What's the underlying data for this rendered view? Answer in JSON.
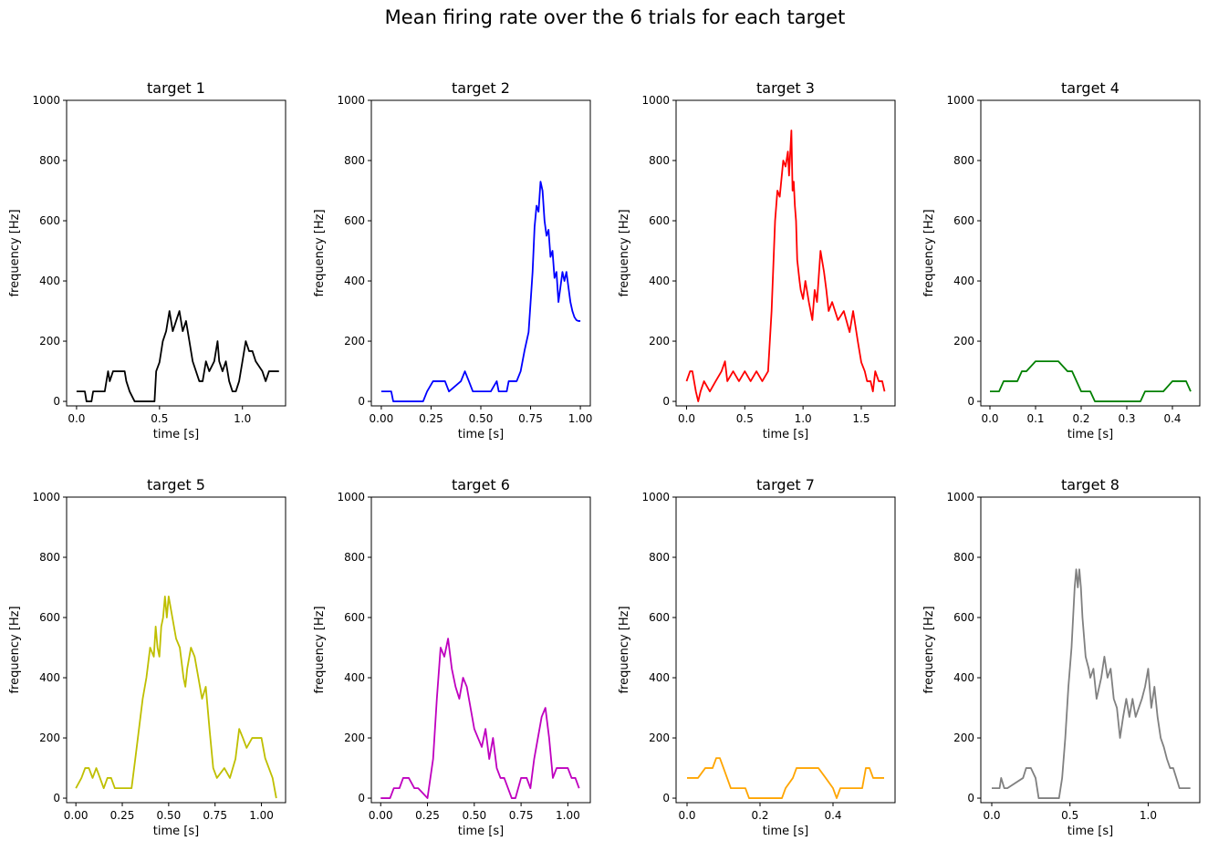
{
  "figure": {
    "suptitle": "Mean firing rate over the 6 trials for each target"
  },
  "chart_data": [
    {
      "type": "line",
      "title": "target 1",
      "xlabel": "time [s]",
      "ylabel": "frequency [Hz]",
      "color": "#000000",
      "xlim": [
        -0.06,
        1.26
      ],
      "ylim": [
        -15,
        1000
      ],
      "xticks": [
        0.0,
        0.5,
        1.0
      ],
      "xticklabels": [
        "0.0",
        "0.5",
        "1.0"
      ],
      "yticks": [
        0,
        200,
        400,
        600,
        800,
        1000
      ],
      "yticklabels": [
        "0",
        "200",
        "400",
        "600",
        "800",
        "1000"
      ],
      "x": [
        0,
        0.05,
        0.06,
        0.09,
        0.1,
        0.17,
        0.19,
        0.2,
        0.22,
        0.29,
        0.3,
        0.32,
        0.35,
        0.47,
        0.48,
        0.5,
        0.52,
        0.54,
        0.56,
        0.58,
        0.6,
        0.62,
        0.64,
        0.66,
        0.68,
        0.7,
        0.72,
        0.74,
        0.76,
        0.78,
        0.8,
        0.83,
        0.85,
        0.86,
        0.88,
        0.9,
        0.92,
        0.94,
        0.96,
        0.98,
        1.0,
        1.02,
        1.04,
        1.06,
        1.08,
        1.12,
        1.14,
        1.16,
        1.18,
        1.2,
        1.22
      ],
      "y": [
        33,
        33,
        0,
        0,
        33,
        33,
        100,
        67,
        100,
        100,
        67,
        33,
        0,
        0,
        100,
        130,
        200,
        233,
        300,
        233,
        267,
        300,
        233,
        267,
        200,
        133,
        100,
        67,
        67,
        133,
        100,
        133,
        200,
        133,
        100,
        133,
        67,
        33,
        33,
        67,
        133,
        200,
        167,
        167,
        133,
        100,
        67,
        100,
        100,
        100,
        100
      ]
    },
    {
      "type": "line",
      "title": "target 2",
      "xlabel": "time [s]",
      "ylabel": "frequency [Hz]",
      "color": "#0000ff",
      "xlim": [
        -0.05,
        1.05
      ],
      "ylim": [
        -15,
        1000
      ],
      "xticks": [
        0.0,
        0.25,
        0.5,
        0.75,
        1.0
      ],
      "xticklabels": [
        "0.00",
        "0.25",
        "0.50",
        "0.75",
        "1.00"
      ],
      "yticks": [
        0,
        200,
        400,
        600,
        800,
        1000
      ],
      "yticklabels": [
        "0",
        "200",
        "400",
        "600",
        "800",
        "1000"
      ],
      "x": [
        0,
        0.05,
        0.06,
        0.21,
        0.23,
        0.26,
        0.32,
        0.34,
        0.4,
        0.42,
        0.44,
        0.46,
        0.5,
        0.55,
        0.58,
        0.59,
        0.6,
        0.63,
        0.64,
        0.68,
        0.7,
        0.72,
        0.74,
        0.75,
        0.76,
        0.77,
        0.78,
        0.79,
        0.8,
        0.81,
        0.82,
        0.83,
        0.84,
        0.85,
        0.86,
        0.87,
        0.88,
        0.89,
        0.9,
        0.91,
        0.92,
        0.93,
        0.94,
        0.95,
        0.96,
        0.97,
        0.98,
        0.99,
        1.0
      ],
      "y": [
        33,
        33,
        0,
        0,
        33,
        67,
        67,
        33,
        67,
        100,
        67,
        33,
        33,
        33,
        67,
        33,
        33,
        33,
        67,
        67,
        100,
        170,
        230,
        330,
        430,
        580,
        650,
        630,
        730,
        700,
        600,
        550,
        570,
        480,
        500,
        410,
        430,
        330,
        380,
        430,
        400,
        430,
        380,
        330,
        300,
        280,
        270,
        267,
        267
      ]
    },
    {
      "type": "line",
      "title": "target 3",
      "xlabel": "time [s]",
      "ylabel": "frequency [Hz]",
      "color": "#ff0000",
      "xlim": [
        -0.09,
        1.79
      ],
      "ylim": [
        -15,
        1000
      ],
      "xticks": [
        0.0,
        0.5,
        1.0,
        1.5
      ],
      "xticklabels": [
        "0.0",
        "0.5",
        "1.0",
        "1.5"
      ],
      "yticks": [
        0,
        200,
        400,
        600,
        800,
        1000
      ],
      "yticklabels": [
        "0",
        "200",
        "400",
        "600",
        "800",
        "1000"
      ],
      "x": [
        0,
        0.03,
        0.05,
        0.08,
        0.1,
        0.12,
        0.15,
        0.2,
        0.25,
        0.3,
        0.33,
        0.35,
        0.4,
        0.45,
        0.5,
        0.55,
        0.6,
        0.65,
        0.7,
        0.73,
        0.76,
        0.78,
        0.8,
        0.83,
        0.85,
        0.87,
        0.88,
        0.9,
        0.91,
        0.92,
        0.93,
        0.94,
        0.95,
        0.97,
        0.98,
        1.0,
        1.02,
        1.05,
        1.08,
        1.1,
        1.12,
        1.15,
        1.18,
        1.2,
        1.22,
        1.25,
        1.3,
        1.35,
        1.4,
        1.43,
        1.47,
        1.5,
        1.53,
        1.55,
        1.58,
        1.6,
        1.62,
        1.65,
        1.68,
        1.7
      ],
      "y": [
        67,
        100,
        100,
        33,
        0,
        33,
        67,
        33,
        67,
        100,
        133,
        67,
        100,
        67,
        100,
        67,
        100,
        67,
        100,
        300,
        600,
        700,
        680,
        800,
        780,
        830,
        750,
        900,
        700,
        730,
        650,
        600,
        470,
        400,
        370,
        340,
        400,
        330,
        270,
        370,
        330,
        500,
        430,
        370,
        300,
        330,
        270,
        300,
        230,
        300,
        200,
        130,
        100,
        67,
        67,
        33,
        100,
        67,
        67,
        33
      ]
    },
    {
      "type": "line",
      "title": "target 4",
      "xlabel": "time [s]",
      "ylabel": "frequency [Hz]",
      "color": "#008000",
      "xlim": [
        -0.02,
        0.46
      ],
      "ylim": [
        -15,
        1000
      ],
      "xticks": [
        0.0,
        0.1,
        0.2,
        0.3,
        0.4
      ],
      "xticklabels": [
        "0.0",
        "0.1",
        "0.2",
        "0.3",
        "0.4"
      ],
      "yticks": [
        0,
        200,
        400,
        600,
        800,
        1000
      ],
      "yticklabels": [
        "0",
        "200",
        "400",
        "600",
        "800",
        "1000"
      ],
      "x": [
        0,
        0.02,
        0.03,
        0.05,
        0.06,
        0.07,
        0.08,
        0.1,
        0.15,
        0.17,
        0.18,
        0.2,
        0.22,
        0.23,
        0.3,
        0.33,
        0.34,
        0.37,
        0.38,
        0.4,
        0.43,
        0.44
      ],
      "y": [
        33,
        33,
        67,
        67,
        67,
        100,
        100,
        133,
        133,
        100,
        100,
        33,
        33,
        0,
        0,
        0,
        33,
        33,
        33,
        67,
        67,
        33
      ]
    },
    {
      "type": "line",
      "title": "target 5",
      "xlabel": "time [s]",
      "ylabel": "frequency [Hz]",
      "color": "#bfbf00",
      "xlim": [
        -0.05,
        1.13
      ],
      "ylim": [
        -15,
        1000
      ],
      "xticks": [
        0.0,
        0.25,
        0.5,
        0.75,
        1.0
      ],
      "xticklabels": [
        "0.00",
        "0.25",
        "0.50",
        "0.75",
        "1.00"
      ],
      "yticks": [
        0,
        200,
        400,
        600,
        800,
        1000
      ],
      "yticklabels": [
        "0",
        "200",
        "400",
        "600",
        "800",
        "1000"
      ],
      "x": [
        0,
        0.03,
        0.05,
        0.07,
        0.09,
        0.11,
        0.13,
        0.15,
        0.17,
        0.19,
        0.21,
        0.25,
        0.3,
        0.32,
        0.34,
        0.36,
        0.38,
        0.4,
        0.42,
        0.43,
        0.44,
        0.45,
        0.46,
        0.47,
        0.48,
        0.49,
        0.5,
        0.52,
        0.54,
        0.56,
        0.58,
        0.59,
        0.6,
        0.62,
        0.64,
        0.66,
        0.68,
        0.7,
        0.72,
        0.74,
        0.76,
        0.8,
        0.83,
        0.86,
        0.88,
        0.9,
        0.92,
        0.95,
        1.0,
        1.02,
        1.04,
        1.06,
        1.08
      ],
      "y": [
        33,
        67,
        100,
        100,
        67,
        100,
        67,
        33,
        67,
        67,
        33,
        33,
        33,
        130,
        230,
        330,
        400,
        500,
        470,
        570,
        500,
        470,
        570,
        600,
        670,
        600,
        670,
        600,
        530,
        500,
        400,
        370,
        430,
        500,
        470,
        400,
        330,
        370,
        230,
        100,
        67,
        100,
        67,
        130,
        230,
        200,
        167,
        200,
        200,
        133,
        100,
        67,
        0
      ]
    },
    {
      "type": "line",
      "title": "target 6",
      "xlabel": "time [s]",
      "ylabel": "frequency [Hz]",
      "color": "#bf00bf",
      "xlim": [
        -0.05,
        1.12
      ],
      "ylim": [
        -15,
        1000
      ],
      "xticks": [
        0.0,
        0.25,
        0.5,
        0.75,
        1.0
      ],
      "xticklabels": [
        "0.00",
        "0.25",
        "0.50",
        "0.75",
        "1.00"
      ],
      "yticks": [
        0,
        200,
        400,
        600,
        800,
        1000
      ],
      "yticklabels": [
        "0",
        "200",
        "400",
        "600",
        "800",
        "1000"
      ],
      "x": [
        0,
        0.05,
        0.07,
        0.1,
        0.12,
        0.15,
        0.18,
        0.2,
        0.25,
        0.28,
        0.3,
        0.32,
        0.34,
        0.36,
        0.38,
        0.4,
        0.42,
        0.44,
        0.46,
        0.48,
        0.5,
        0.52,
        0.54,
        0.56,
        0.58,
        0.6,
        0.62,
        0.64,
        0.66,
        0.7,
        0.72,
        0.75,
        0.78,
        0.8,
        0.82,
        0.84,
        0.86,
        0.88,
        0.9,
        0.92,
        0.94,
        0.96,
        1.0,
        1.02,
        1.04,
        1.06
      ],
      "y": [
        0,
        0,
        33,
        33,
        67,
        67,
        33,
        33,
        0,
        130,
        330,
        500,
        470,
        530,
        430,
        370,
        330,
        400,
        370,
        300,
        230,
        200,
        170,
        230,
        130,
        200,
        100,
        67,
        67,
        0,
        0,
        67,
        67,
        33,
        130,
        200,
        270,
        300,
        200,
        67,
        100,
        100,
        100,
        67,
        67,
        33
      ]
    },
    {
      "type": "line",
      "title": "target 7",
      "xlabel": "time [s]",
      "ylabel": "frequency [Hz]",
      "color": "#ffa500",
      "xlim": [
        -0.03,
        0.57
      ],
      "ylim": [
        -15,
        1000
      ],
      "xticks": [
        0.0,
        0.2,
        0.4
      ],
      "xticklabels": [
        "0.0",
        "0.2",
        "0.4"
      ],
      "yticks": [
        0,
        200,
        400,
        600,
        800,
        1000
      ],
      "yticklabels": [
        "0",
        "200",
        "400",
        "600",
        "800",
        "1000"
      ],
      "x": [
        0,
        0.02,
        0.03,
        0.05,
        0.07,
        0.08,
        0.09,
        0.1,
        0.12,
        0.14,
        0.16,
        0.17,
        0.18,
        0.26,
        0.27,
        0.29,
        0.3,
        0.36,
        0.38,
        0.4,
        0.41,
        0.42,
        0.48,
        0.49,
        0.5,
        0.51,
        0.52,
        0.54
      ],
      "y": [
        67,
        67,
        67,
        100,
        100,
        133,
        133,
        100,
        33,
        33,
        33,
        0,
        0,
        0,
        33,
        67,
        100,
        100,
        67,
        33,
        0,
        33,
        33,
        100,
        100,
        67,
        67,
        67
      ]
    },
    {
      "type": "line",
      "title": "target 8",
      "xlabel": "time [s]",
      "ylabel": "frequency [Hz]",
      "color": "#808080",
      "xlim": [
        -0.07,
        1.33
      ],
      "ylim": [
        -15,
        1000
      ],
      "xticks": [
        0.0,
        0.5,
        1.0
      ],
      "xticklabels": [
        "0.0",
        "0.5",
        "1.0"
      ],
      "yticks": [
        0,
        200,
        400,
        600,
        800,
        1000
      ],
      "yticklabels": [
        "0",
        "200",
        "400",
        "600",
        "800",
        "1000"
      ],
      "x": [
        0,
        0.05,
        0.06,
        0.08,
        0.1,
        0.2,
        0.22,
        0.25,
        0.28,
        0.3,
        0.33,
        0.43,
        0.45,
        0.47,
        0.49,
        0.51,
        0.53,
        0.54,
        0.55,
        0.56,
        0.57,
        0.58,
        0.6,
        0.62,
        0.63,
        0.65,
        0.67,
        0.7,
        0.72,
        0.74,
        0.76,
        0.78,
        0.8,
        0.82,
        0.84,
        0.86,
        0.88,
        0.9,
        0.92,
        0.94,
        0.96,
        0.98,
        1.0,
        1.02,
        1.04,
        1.06,
        1.08,
        1.1,
        1.12,
        1.14,
        1.16,
        1.18,
        1.2,
        1.23,
        1.25,
        1.27
      ],
      "y": [
        33,
        33,
        67,
        33,
        33,
        67,
        100,
        100,
        67,
        0,
        0,
        0,
        67,
        200,
        370,
        500,
        700,
        760,
        700,
        760,
        700,
        600,
        470,
        430,
        400,
        430,
        330,
        400,
        470,
        400,
        430,
        330,
        300,
        200,
        270,
        330,
        270,
        330,
        270,
        300,
        330,
        370,
        430,
        300,
        370,
        270,
        200,
        170,
        130,
        100,
        100,
        67,
        33,
        33,
        33,
        33
      ]
    }
  ]
}
